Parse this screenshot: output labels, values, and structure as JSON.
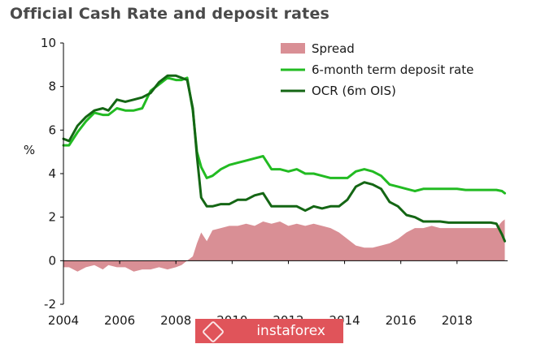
{
  "title": "Official Cash Rate and deposit rates",
  "watermark": "instaforex",
  "chart_data": {
    "type": "line",
    "title": "Official Cash Rate and deposit rates",
    "ylabel": "%",
    "xlabel": "",
    "ylim": [
      -2,
      10
    ],
    "xlim": [
      2004,
      2019.8
    ],
    "yticks": [
      -2,
      0,
      2,
      4,
      6,
      8,
      10
    ],
    "xticks": [
      2004,
      2006,
      2008,
      2010,
      2012,
      2014,
      2016,
      2018
    ],
    "grid": false,
    "legend_position": "top-right",
    "series": [
      {
        "name": "Spread",
        "render": "area",
        "color": "#d98f95",
        "x": [
          2004.0,
          2004.2,
          2004.5,
          2004.8,
          2005.1,
          2005.4,
          2005.6,
          2005.9,
          2006.2,
          2006.5,
          2006.8,
          2007.1,
          2007.4,
          2007.7,
          2008.0,
          2008.2,
          2008.4,
          2008.6,
          2008.75,
          2008.9,
          2009.1,
          2009.3,
          2009.6,
          2009.9,
          2010.2,
          2010.5,
          2010.8,
          2011.1,
          2011.4,
          2011.7,
          2012.0,
          2012.3,
          2012.6,
          2012.9,
          2013.2,
          2013.5,
          2013.8,
          2014.1,
          2014.4,
          2014.7,
          2015.0,
          2015.3,
          2015.6,
          2015.9,
          2016.2,
          2016.5,
          2016.8,
          2017.1,
          2017.4,
          2017.7,
          2018.0,
          2018.3,
          2018.6,
          2018.9,
          2019.2,
          2019.4,
          2019.6,
          2019.7
        ],
        "values": [
          -0.3,
          -0.3,
          -0.5,
          -0.3,
          -0.2,
          -0.4,
          -0.2,
          -0.3,
          -0.3,
          -0.5,
          -0.4,
          -0.4,
          -0.3,
          -0.4,
          -0.3,
          -0.2,
          0.0,
          0.2,
          0.8,
          1.3,
          0.9,
          1.4,
          1.5,
          1.6,
          1.6,
          1.7,
          1.6,
          1.8,
          1.7,
          1.8,
          1.6,
          1.7,
          1.6,
          1.7,
          1.6,
          1.5,
          1.3,
          1.0,
          0.7,
          0.6,
          0.6,
          0.7,
          0.8,
          1.0,
          1.3,
          1.5,
          1.5,
          1.6,
          1.5,
          1.5,
          1.5,
          1.5,
          1.5,
          1.5,
          1.5,
          1.5,
          1.8,
          1.9
        ]
      },
      {
        "name": "6-month term deposit rate",
        "render": "line",
        "color": "#22bb22",
        "x": [
          2004.0,
          2004.2,
          2004.5,
          2004.8,
          2005.1,
          2005.4,
          2005.6,
          2005.9,
          2006.2,
          2006.5,
          2006.8,
          2007.1,
          2007.4,
          2007.7,
          2008.0,
          2008.2,
          2008.4,
          2008.6,
          2008.75,
          2008.9,
          2009.1,
          2009.3,
          2009.6,
          2009.9,
          2010.2,
          2010.5,
          2010.8,
          2011.1,
          2011.4,
          2011.7,
          2012.0,
          2012.3,
          2012.6,
          2012.9,
          2013.2,
          2013.5,
          2013.8,
          2014.1,
          2014.4,
          2014.7,
          2015.0,
          2015.3,
          2015.6,
          2015.9,
          2016.2,
          2016.5,
          2016.8,
          2017.1,
          2017.4,
          2017.7,
          2018.0,
          2018.3,
          2018.6,
          2018.9,
          2019.2,
          2019.4,
          2019.6,
          2019.7
        ],
        "values": [
          5.3,
          5.3,
          5.9,
          6.4,
          6.8,
          6.7,
          6.7,
          7.0,
          6.9,
          6.9,
          7.0,
          7.8,
          8.1,
          8.4,
          8.3,
          8.3,
          8.4,
          6.9,
          5.0,
          4.3,
          3.8,
          3.9,
          4.2,
          4.4,
          4.5,
          4.6,
          4.7,
          4.8,
          4.2,
          4.2,
          4.1,
          4.2,
          4.0,
          4.0,
          3.9,
          3.8,
          3.8,
          3.8,
          4.1,
          4.2,
          4.1,
          3.9,
          3.5,
          3.4,
          3.3,
          3.2,
          3.3,
          3.3,
          3.3,
          3.3,
          3.3,
          3.25,
          3.25,
          3.25,
          3.25,
          3.25,
          3.2,
          3.1
        ]
      },
      {
        "name": "OCR (6m OIS)",
        "render": "line",
        "color": "#146614",
        "x": [
          2004.0,
          2004.2,
          2004.5,
          2004.8,
          2005.1,
          2005.4,
          2005.6,
          2005.9,
          2006.2,
          2006.5,
          2006.8,
          2007.1,
          2007.4,
          2007.7,
          2008.0,
          2008.2,
          2008.4,
          2008.6,
          2008.75,
          2008.9,
          2009.1,
          2009.3,
          2009.6,
          2009.9,
          2010.2,
          2010.5,
          2010.8,
          2011.1,
          2011.4,
          2011.7,
          2012.0,
          2012.3,
          2012.6,
          2012.9,
          2013.2,
          2013.5,
          2013.8,
          2014.1,
          2014.4,
          2014.7,
          2015.0,
          2015.3,
          2015.6,
          2015.9,
          2016.2,
          2016.5,
          2016.8,
          2017.1,
          2017.4,
          2017.7,
          2018.0,
          2018.3,
          2018.6,
          2018.9,
          2019.2,
          2019.4,
          2019.6,
          2019.7
        ],
        "values": [
          5.6,
          5.5,
          6.2,
          6.6,
          6.9,
          7.0,
          6.9,
          7.4,
          7.3,
          7.4,
          7.5,
          7.7,
          8.2,
          8.5,
          8.5,
          8.4,
          8.3,
          7.0,
          4.8,
          2.9,
          2.5,
          2.5,
          2.6,
          2.6,
          2.8,
          2.8,
          3.0,
          3.1,
          2.5,
          2.5,
          2.5,
          2.5,
          2.3,
          2.5,
          2.4,
          2.5,
          2.5,
          2.8,
          3.4,
          3.6,
          3.5,
          3.3,
          2.7,
          2.5,
          2.1,
          2.0,
          1.8,
          1.8,
          1.8,
          1.75,
          1.75,
          1.75,
          1.75,
          1.75,
          1.75,
          1.7,
          1.2,
          0.9
        ]
      }
    ]
  }
}
